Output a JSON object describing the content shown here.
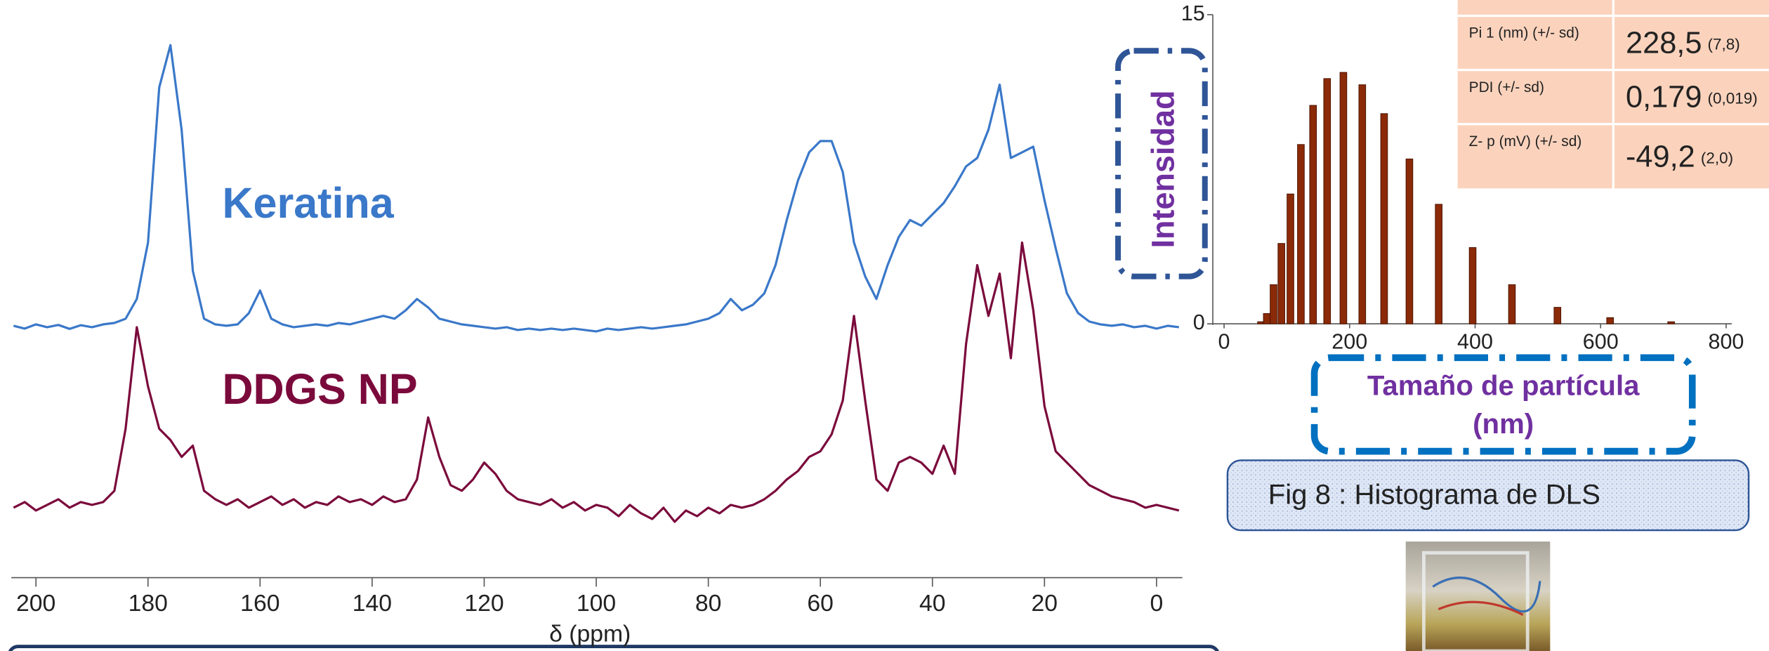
{
  "chart_data": [
    {
      "type": "line",
      "xlabel": "δ (ppm)",
      "xlim": [
        204,
        -4
      ],
      "xticks": [
        200,
        180,
        160,
        140,
        120,
        100,
        80,
        60,
        40,
        20,
        0
      ],
      "ylim": [
        0,
        100
      ],
      "x": [
        204,
        202,
        200,
        198,
        196,
        194,
        192,
        190,
        188,
        186,
        184,
        182,
        180,
        178,
        176,
        174,
        172,
        170,
        168,
        166,
        164,
        162,
        160,
        158,
        156,
        154,
        152,
        150,
        148,
        146,
        144,
        142,
        140,
        138,
        136,
        134,
        132,
        130,
        128,
        126,
        124,
        122,
        120,
        118,
        116,
        114,
        112,
        110,
        108,
        106,
        104,
        102,
        100,
        98,
        96,
        94,
        92,
        90,
        88,
        86,
        84,
        82,
        80,
        78,
        76,
        74,
        72,
        70,
        68,
        66,
        64,
        62,
        60,
        58,
        56,
        54,
        52,
        50,
        48,
        46,
        44,
        42,
        40,
        38,
        36,
        34,
        32,
        30,
        28,
        26,
        24,
        22,
        20,
        18,
        16,
        14,
        12,
        10,
        8,
        6,
        4,
        2,
        0,
        -2,
        -4
      ],
      "series": [
        {
          "name": "Keratina",
          "color": "#3a78c9",
          "values": [
            0.5,
            -0.5,
            1,
            0,
            0.8,
            -0.6,
            0.7,
            0,
            1,
            1.5,
            3,
            10,
            30,
            85,
            100,
            70,
            20,
            3,
            1,
            0.5,
            1,
            5,
            13,
            3,
            1,
            0,
            0.5,
            1,
            0.5,
            1.5,
            1,
            2,
            3,
            4,
            3,
            6,
            10,
            7,
            3,
            2,
            1,
            0.5,
            0,
            -0.5,
            0,
            -1,
            -0.5,
            -1,
            -0.5,
            -1,
            -0.5,
            -1,
            -1.5,
            -0.5,
            -1,
            -0.5,
            0,
            -0.5,
            0,
            0.5,
            1,
            2,
            3,
            5,
            10,
            6,
            8,
            12,
            22,
            38,
            52,
            62,
            66,
            66,
            55,
            30,
            18,
            10,
            22,
            32,
            38,
            36,
            40,
            44,
            50,
            57,
            60,
            70,
            86,
            60,
            62,
            64,
            45,
            28,
            12,
            5,
            2,
            1,
            0.5,
            1,
            0,
            0.5,
            -0.5,
            0.5,
            0
          ]
        },
        {
          "name": "DDGS NP",
          "color": "#7b0a3c",
          "values": [
            2,
            4,
            1,
            3,
            5,
            2,
            4,
            3,
            4,
            8,
            30,
            66,
            45,
            30,
            26,
            20,
            24,
            8,
            5,
            3,
            5,
            2,
            4,
            6,
            3,
            5,
            2,
            4,
            3,
            6,
            4,
            5,
            3,
            6,
            4,
            5,
            12,
            34,
            20,
            10,
            8,
            12,
            18,
            14,
            8,
            5,
            4,
            3,
            5,
            2,
            4,
            1,
            3,
            2,
            -1,
            3,
            0,
            -2,
            2,
            -3,
            1,
            -1,
            2,
            0,
            3,
            2,
            3,
            5,
            8,
            12,
            15,
            20,
            22,
            28,
            40,
            70,
            40,
            12,
            8,
            18,
            20,
            18,
            14,
            24,
            14,
            60,
            88,
            70,
            85,
            55,
            96,
            72,
            38,
            22,
            18,
            14,
            10,
            8,
            6,
            5,
            4,
            2,
            3,
            2,
            1
          ]
        }
      ]
    },
    {
      "type": "bar",
      "ylabel": "Intensidad",
      "xlabel": "Tamaño de partícula (nm)",
      "color": "#8b2a08",
      "xlim": [
        0,
        800
      ],
      "xticks": [
        0,
        200,
        400,
        600,
        800
      ],
      "ylim": [
        0,
        15
      ],
      "yticks": [
        0,
        15
      ],
      "x": [
        58.8,
        68.1,
        78.8,
        91.3,
        105.7,
        122.4,
        141.8,
        164.2,
        190.1,
        220.2,
        255,
        295.3,
        342,
        396.1,
        458.7,
        531.2,
        615.1,
        712.4
      ],
      "values": [
        0.1,
        0.5,
        1.9,
        3.9,
        6.3,
        8.7,
        10.6,
        11.9,
        12.2,
        11.6,
        10.2,
        8.0,
        5.8,
        3.7,
        1.9,
        0.8,
        0.3,
        0.1
      ]
    }
  ],
  "table": {
    "rows": [
      {
        "label": "Pi 1 (nm) (+/- sd)",
        "value": "228,5",
        "sd": "(7,8)"
      },
      {
        "label": "PDI (+/- sd)",
        "value": "0,179",
        "sd": "(0,019)"
      },
      {
        "label": "Z- p (mV) (+/- sd)",
        "value": "-49,2",
        "sd": "(2,0)"
      }
    ]
  },
  "caption": "Fig 8 : Histograma de DLS"
}
